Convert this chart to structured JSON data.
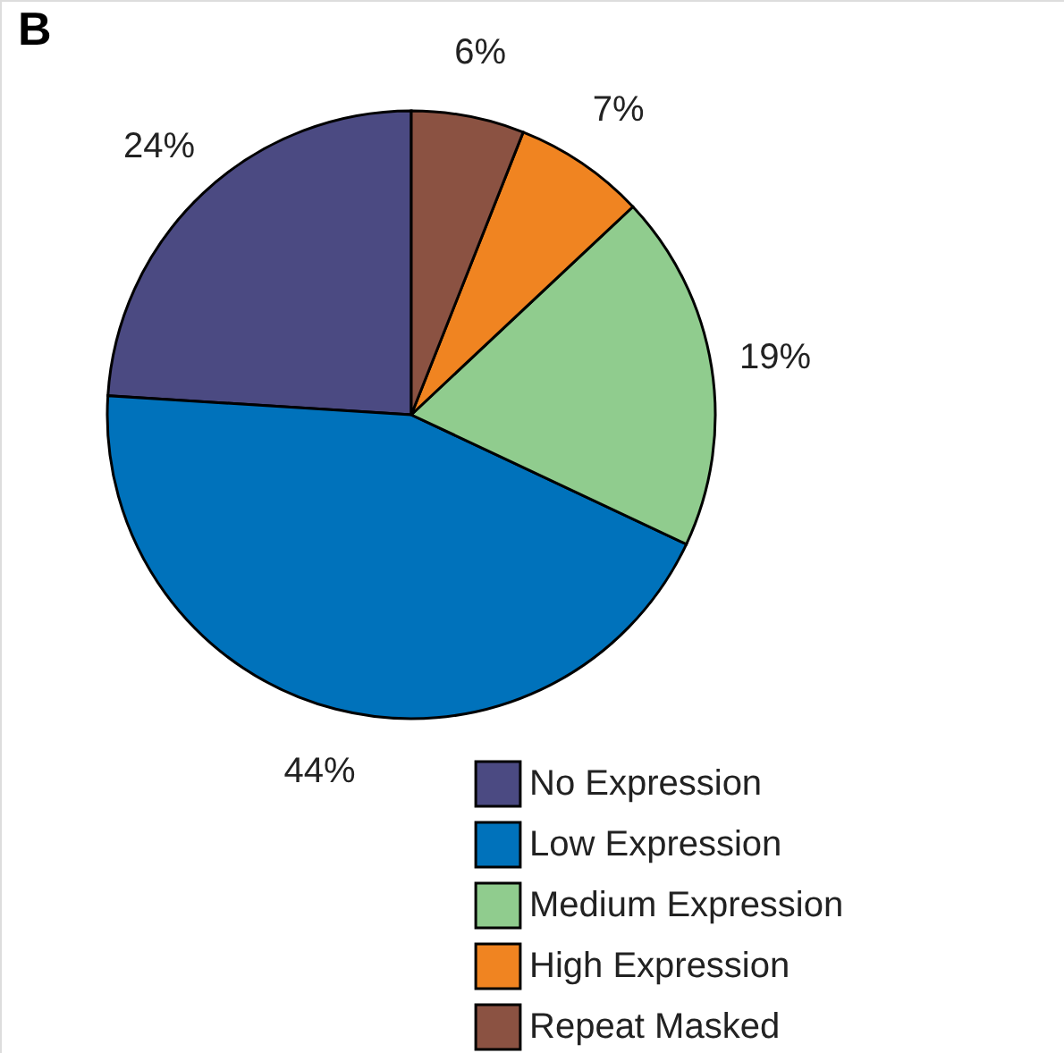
{
  "chart_data": {
    "type": "pie",
    "title": "B",
    "categories": [
      "No Expression",
      "Low Expression",
      "Medium Expression",
      "High Expression",
      "Repeat Masked"
    ],
    "values": [
      24,
      44,
      19,
      7,
      6
    ],
    "value_labels": [
      "24%",
      "44%",
      "19%",
      "7%",
      "6%"
    ],
    "colors": [
      "#4b4a82",
      "#0072bb",
      "#90cc8e",
      "#f08421",
      "#8b5242"
    ],
    "legend": "bottom right"
  }
}
